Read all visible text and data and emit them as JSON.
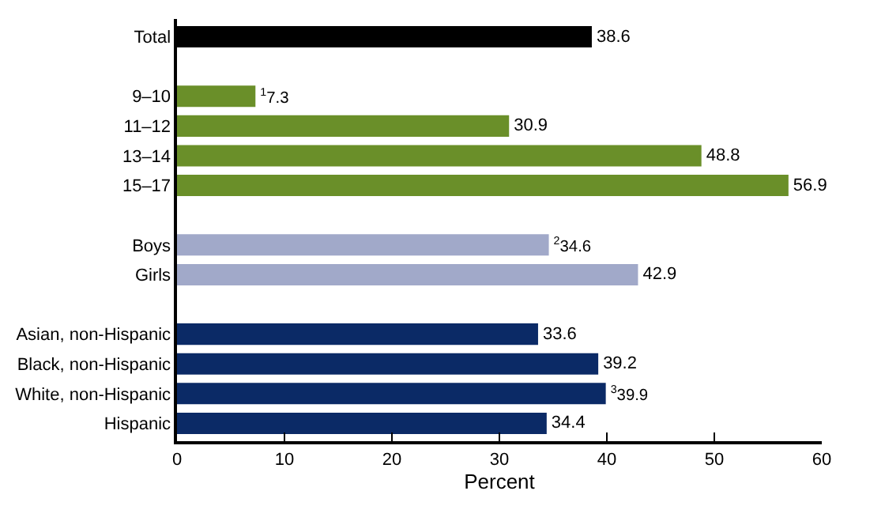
{
  "chart_data": {
    "type": "bar",
    "orientation": "horizontal",
    "xlabel": "Percent",
    "categories": [
      "Total",
      null,
      "9–10",
      "11–12",
      "13–14",
      "15–17",
      null,
      "Boys",
      "Girls",
      null,
      "Asian, non-Hispanic",
      "Black, non-Hispanic",
      "White, non-Hispanic",
      "Hispanic"
    ],
    "values": [
      38.6,
      null,
      7.3,
      30.9,
      48.8,
      56.9,
      null,
      34.6,
      42.9,
      null,
      33.6,
      39.2,
      39.9,
      34.4
    ],
    "colors": [
      "#000000",
      null,
      "#6a8f29",
      "#6a8f29",
      "#6a8f29",
      "#6a8f29",
      null,
      "#a1a9c9",
      "#a1a9c9",
      null,
      "#0b2a66",
      "#0b2a66",
      "#0b2a66",
      "#0b2a66"
    ],
    "value_labels": [
      "38.6",
      null,
      "$^{1}$7.3",
      "30.9",
      "48.8",
      "56.9",
      null,
      "$^{2}$34.6",
      "42.9",
      null,
      "33.6",
      "39.2",
      "$^{3}$39.9",
      "34.4"
    ],
    "xlim": [
      0,
      60
    ],
    "xticks": [
      0,
      10,
      20,
      30,
      40,
      50,
      60
    ]
  }
}
